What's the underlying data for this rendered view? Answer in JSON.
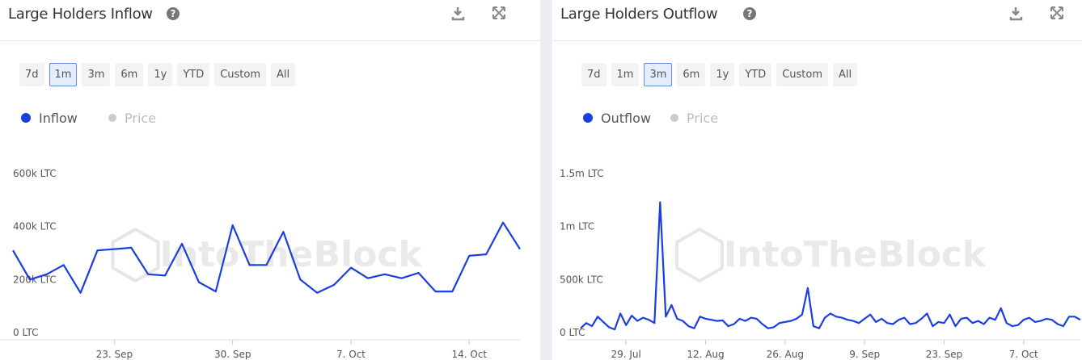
{
  "chart_data": [
    {
      "type": "line",
      "title": "Large Holders Inflow",
      "watermark": "IntoTheBlock",
      "range_buttons": [
        "7d",
        "1m",
        "3m",
        "6m",
        "1y",
        "YTD",
        "Custom",
        "All"
      ],
      "selected_range": "1m",
      "legend_inactive": "Price",
      "categories": [
        null,
        null,
        null,
        null,
        null,
        null,
        "23. Sep",
        null,
        null,
        null,
        null,
        null,
        null,
        "30. Sep",
        null,
        null,
        null,
        null,
        null,
        null,
        "7. Oct",
        null,
        null,
        null,
        null,
        null,
        null,
        "14. Oct",
        null,
        null,
        null
      ],
      "series": [
        {
          "name": "Inflow",
          "color": "#1a3ee0",
          "values": [
            310000,
            200000,
            220000,
            255000,
            150000,
            310000,
            315000,
            320000,
            220000,
            215000,
            335000,
            190000,
            155000,
            405000,
            255000,
            255000,
            380000,
            200000,
            150000,
            180000,
            245000,
            205000,
            220000,
            205000,
            225000,
            155000,
            155000,
            290000,
            295000,
            415000,
            315000
          ]
        }
      ],
      "ylim": [
        0,
        600000
      ],
      "yticks": [
        {
          "value": 0,
          "label": "0 LTC"
        },
        {
          "value": 200000,
          "label": "200k LTC"
        },
        {
          "value": 400000,
          "label": "400k LTC"
        },
        {
          "value": 600000,
          "label": "600k LTC"
        }
      ]
    },
    {
      "type": "line",
      "title": "Large Holders Outflow",
      "watermark": "IntoTheBlock",
      "range_buttons": [
        "7d",
        "1m",
        "3m",
        "6m",
        "1y",
        "YTD",
        "Custom",
        "All"
      ],
      "selected_range": "3m",
      "legend_inactive": "Price",
      "categories": [
        null,
        null,
        null,
        null,
        null,
        null,
        null,
        null,
        "29. Jul",
        null,
        null,
        null,
        null,
        null,
        null,
        null,
        null,
        null,
        null,
        null,
        null,
        null,
        "12. Aug",
        null,
        null,
        null,
        null,
        null,
        null,
        null,
        null,
        null,
        null,
        null,
        null,
        null,
        "26. Aug",
        null,
        null,
        null,
        null,
        null,
        null,
        null,
        null,
        null,
        null,
        null,
        null,
        null,
        "9. Sep",
        null,
        null,
        null,
        null,
        null,
        null,
        null,
        null,
        null,
        null,
        null,
        null,
        null,
        "23. Sep",
        null,
        null,
        null,
        null,
        null,
        null,
        null,
        null,
        null,
        null,
        null,
        null,
        null,
        "7. Oct",
        null,
        null,
        null,
        null,
        null,
        null,
        null,
        null,
        null,
        null
      ],
      "series": [
        {
          "name": "Outflow",
          "color": "#1a3ee0",
          "values": [
            40000,
            90000,
            60000,
            150000,
            100000,
            50000,
            30000,
            180000,
            70000,
            160000,
            110000,
            140000,
            120000,
            90000,
            1230000,
            150000,
            260000,
            130000,
            110000,
            60000,
            40000,
            150000,
            130000,
            120000,
            110000,
            115000,
            60000,
            80000,
            130000,
            110000,
            140000,
            130000,
            80000,
            40000,
            50000,
            90000,
            100000,
            110000,
            130000,
            170000,
            420000,
            60000,
            40000,
            140000,
            180000,
            150000,
            140000,
            120000,
            110000,
            90000,
            130000,
            170000,
            100000,
            130000,
            90000,
            80000,
            120000,
            140000,
            80000,
            90000,
            130000,
            180000,
            60000,
            100000,
            90000,
            170000,
            60000,
            130000,
            140000,
            90000,
            110000,
            80000,
            140000,
            120000,
            230000,
            90000,
            60000,
            70000,
            120000,
            140000,
            100000,
            110000,
            130000,
            120000,
            80000,
            60000,
            150000,
            150000,
            120000
          ]
        }
      ],
      "ylim": [
        0,
        1500000
      ],
      "yticks": [
        {
          "value": 0,
          "label": "0 LTC"
        },
        {
          "value": 500000,
          "label": "500k LTC"
        },
        {
          "value": 1000000,
          "label": "1m LTC"
        },
        {
          "value": 1500000,
          "label": "1.5m LTC"
        }
      ]
    }
  ]
}
